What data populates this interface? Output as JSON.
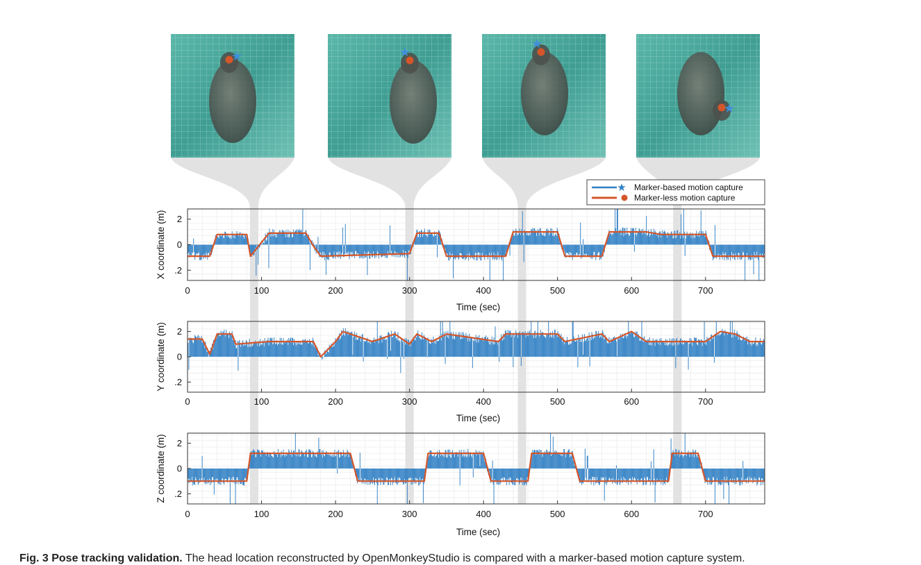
{
  "legend": {
    "marker_based": "Marker-based motion capture",
    "marker_less": "Marker-less motion capture"
  },
  "colors": {
    "marker_based": "#2f7fc4",
    "marker_less": "#d4562a",
    "highlight": "#e2e2e2",
    "photo_tint": "#3a9b8f"
  },
  "photos": [
    {
      "name": "frame-1"
    },
    {
      "name": "frame-2"
    },
    {
      "name": "frame-3"
    },
    {
      "name": "frame-4"
    }
  ],
  "caption": {
    "bold": "Fig. 3 Pose tracking validation.",
    "text": "The head location reconstructed by OpenMonkeyStudio is compared with a marker-based motion capture system."
  },
  "chart_data": [
    {
      "type": "line",
      "xlabel": "Time (sec)",
      "ylabel": "X coordinate (m)",
      "xlim": [
        0,
        780
      ],
      "ylim": [
        -1.4,
        1.4
      ],
      "xticks": [
        "0",
        "100",
        "200",
        "300",
        "400",
        "500",
        "600",
        "700"
      ],
      "yticks": [
        {
          "v": 1,
          "label": "2"
        },
        {
          "v": 0,
          "label": "0"
        },
        {
          "v": -1,
          "label": ".2"
        }
      ],
      "highlight_times": [
        90,
        300,
        452,
        662
      ],
      "grid": true,
      "series": [
        {
          "name": "Marker-less motion capture",
          "x": [
            0,
            30,
            40,
            80,
            85,
            110,
            160,
            170,
            180,
            300,
            310,
            340,
            350,
            430,
            440,
            500,
            510,
            560,
            570,
            620,
            640,
            700,
            710,
            780
          ],
          "y": [
            -0.45,
            -0.45,
            0.4,
            0.4,
            -0.45,
            0.45,
            0.45,
            -0.05,
            -0.45,
            -0.35,
            0.45,
            0.45,
            -0.45,
            -0.45,
            0.5,
            0.5,
            -0.45,
            -0.45,
            0.5,
            0.5,
            0.4,
            0.4,
            -0.45,
            -0.45
          ]
        }
      ]
    },
    {
      "type": "line",
      "xlabel": "Time (sec)",
      "ylabel": "Y coordinate (m)",
      "xlim": [
        0,
        780
      ],
      "ylim": [
        -1.4,
        1.4
      ],
      "xticks": [
        "0",
        "100",
        "200",
        "300",
        "400",
        "500",
        "600",
        "700"
      ],
      "yticks": [
        {
          "v": 1,
          "label": "2"
        },
        {
          "v": 0,
          "label": "0"
        },
        {
          "v": -1,
          "label": ".2"
        }
      ],
      "highlight_times": [
        90,
        300,
        452,
        662
      ],
      "grid": true,
      "series": [
        {
          "name": "Marker-less motion capture",
          "x": [
            0,
            20,
            30,
            40,
            60,
            65,
            110,
            170,
            180,
            200,
            210,
            250,
            280,
            300,
            310,
            330,
            350,
            420,
            430,
            500,
            510,
            560,
            570,
            600,
            620,
            700,
            720,
            740,
            760,
            780
          ],
          "y": [
            0.7,
            0.7,
            0.1,
            0.9,
            0.9,
            0.5,
            0.6,
            0.6,
            0.0,
            0.6,
            1.0,
            0.6,
            0.9,
            0.5,
            0.9,
            0.6,
            0.9,
            0.6,
            0.9,
            0.9,
            0.6,
            0.9,
            0.6,
            1.0,
            0.6,
            0.6,
            1.0,
            0.9,
            0.6,
            0.6
          ]
        }
      ]
    },
    {
      "type": "line",
      "xlabel": "Time (sec)",
      "ylabel": "Z coordinate (m)",
      "xlim": [
        0,
        780
      ],
      "ylim": [
        -1.4,
        1.4
      ],
      "xticks": [
        "0",
        "100",
        "200",
        "300",
        "400",
        "500",
        "600",
        "700"
      ],
      "yticks": [
        {
          "v": 1,
          "label": "2"
        },
        {
          "v": 0,
          "label": "0"
        },
        {
          "v": -1,
          "label": ".2"
        }
      ],
      "highlight_times": [
        90,
        300,
        452,
        662
      ],
      "grid": true,
      "series": [
        {
          "name": "Marker-less motion capture",
          "x": [
            0,
            80,
            85,
            220,
            230,
            320,
            325,
            400,
            410,
            460,
            465,
            520,
            530,
            650,
            655,
            690,
            700,
            780
          ],
          "y": [
            -0.5,
            -0.5,
            0.6,
            0.6,
            -0.5,
            -0.5,
            0.6,
            0.6,
            -0.5,
            -0.5,
            0.6,
            0.6,
            -0.5,
            -0.5,
            0.6,
            0.6,
            -0.5,
            -0.5
          ]
        }
      ]
    }
  ]
}
